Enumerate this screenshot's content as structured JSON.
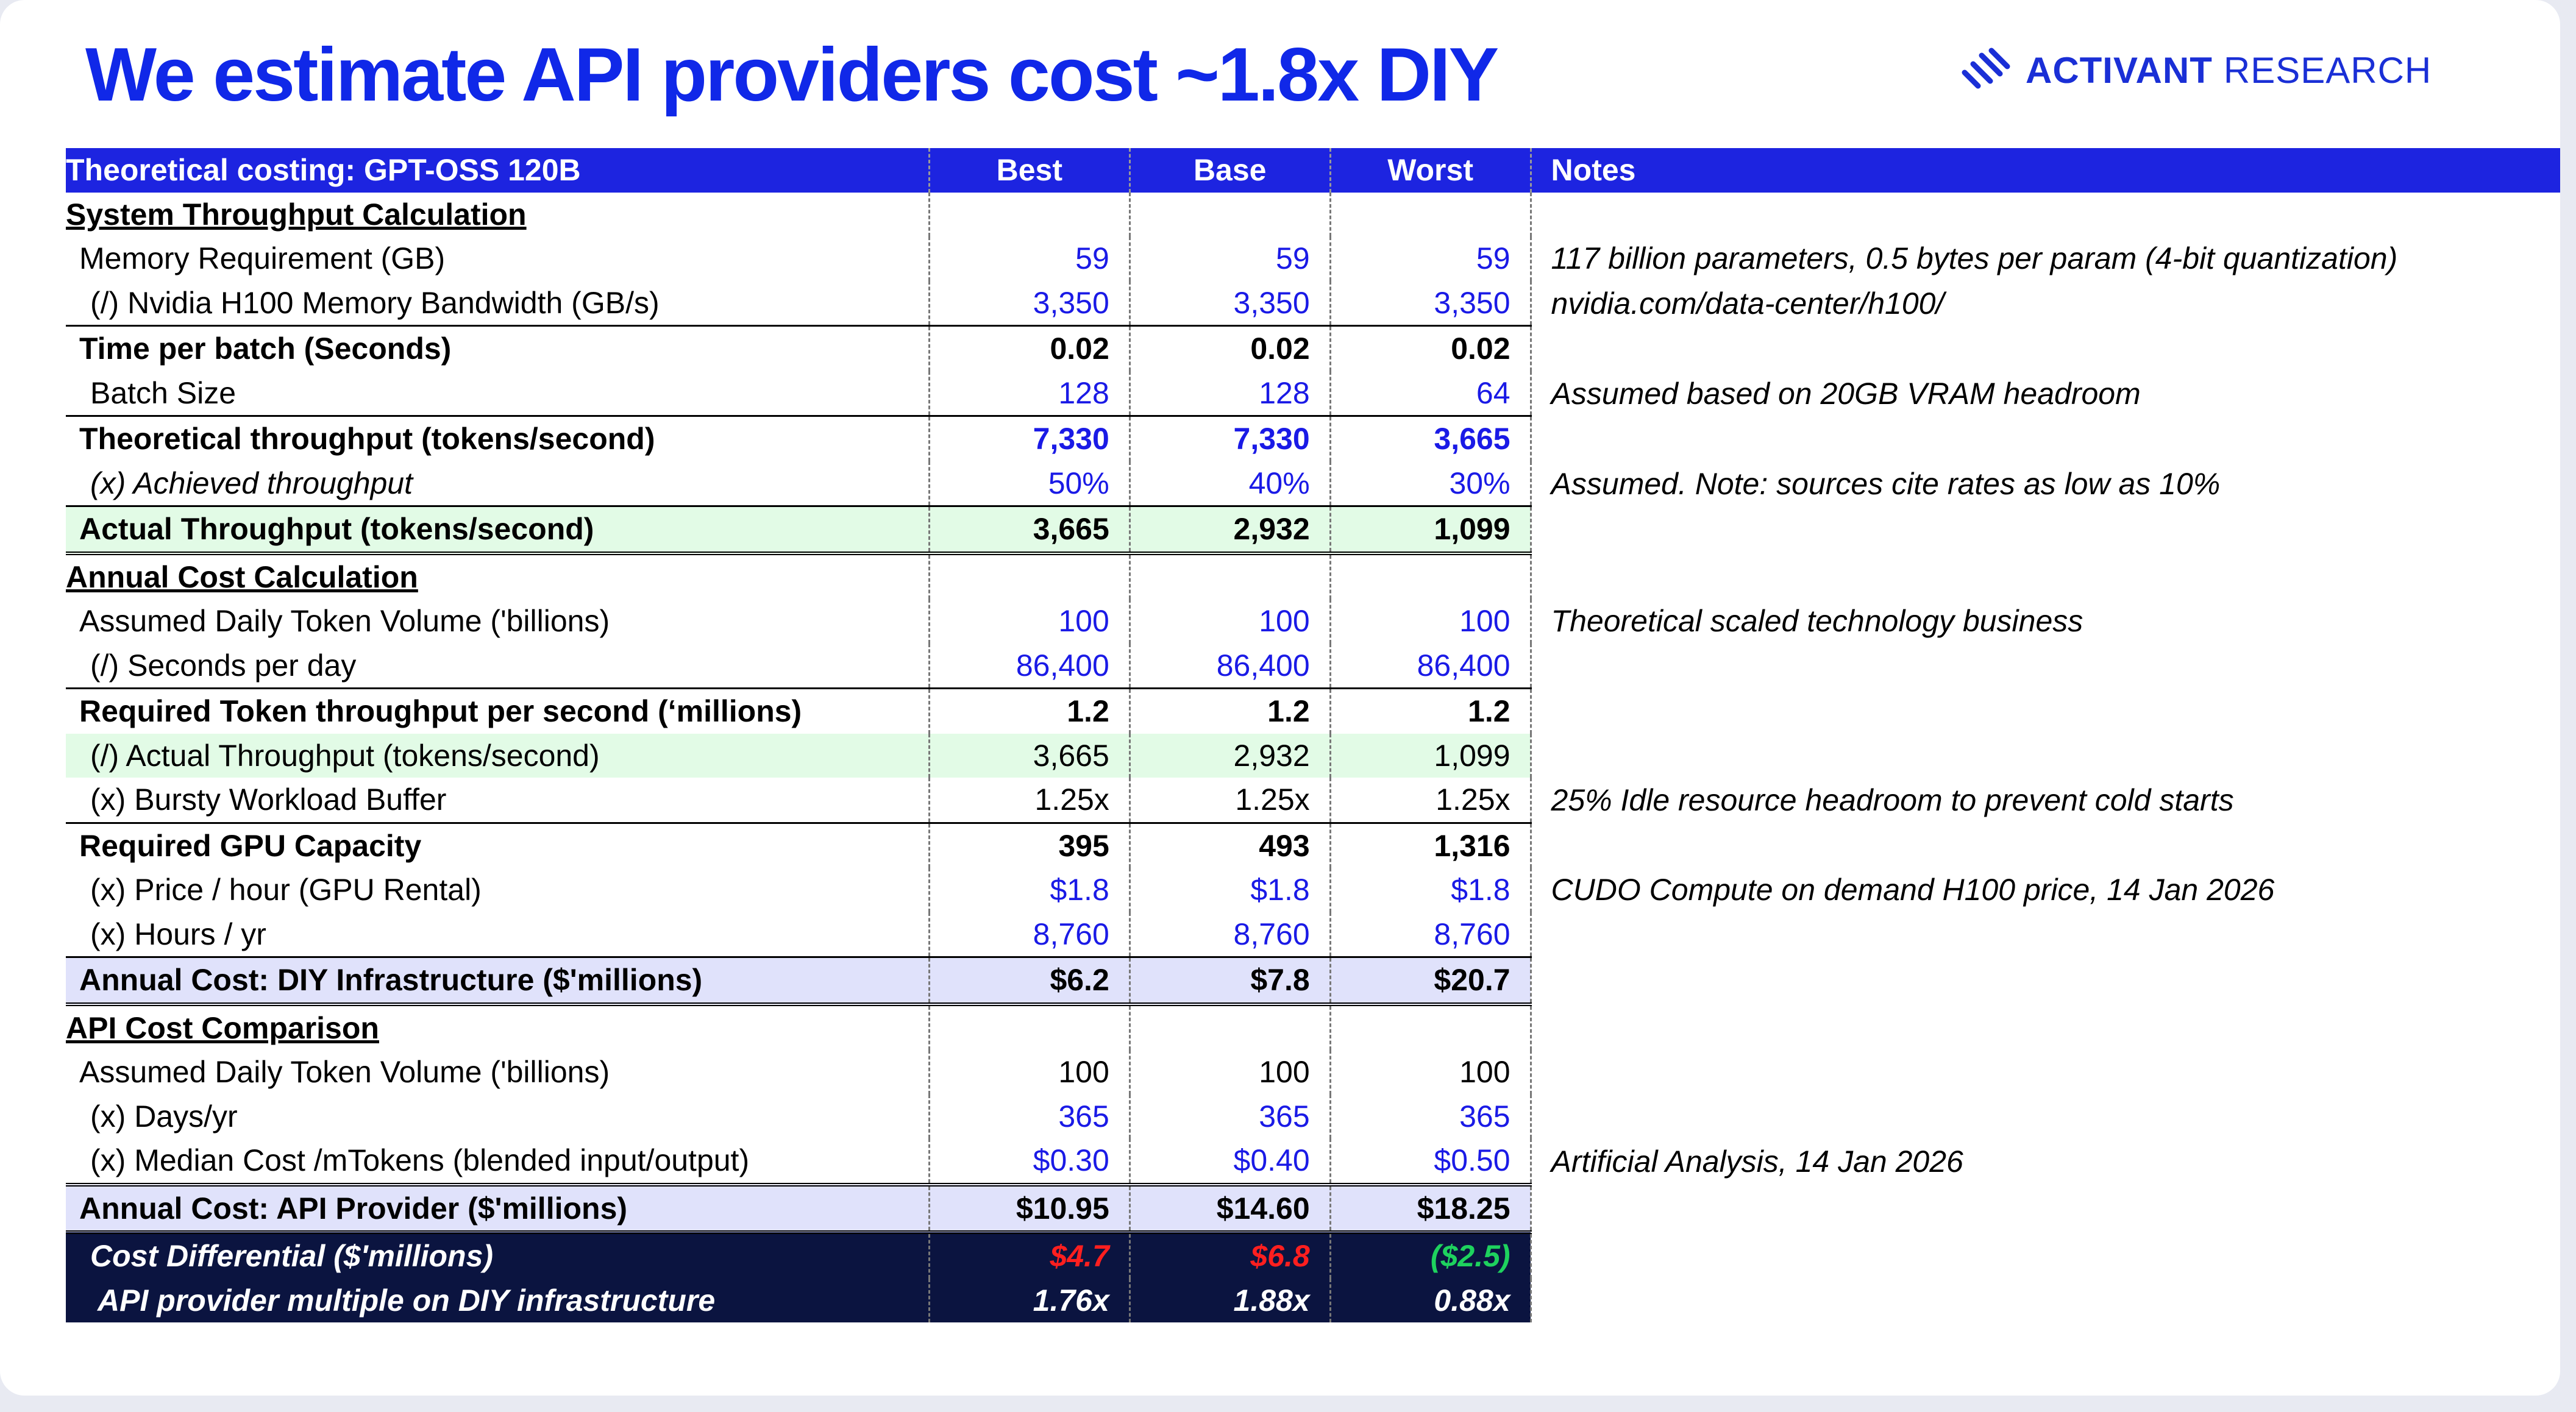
{
  "title": "We estimate API providers cost ~1.8x DIY",
  "logo": {
    "brand_bold": "ACTIVANT",
    "brand_light": "RESEARCH"
  },
  "table": {
    "headers": [
      "Theoretical costing: GPT-OSS 120B",
      "Best",
      "Base",
      "Worst",
      "Notes"
    ],
    "sections": {
      "throughput": "System Throughput Calculation",
      "annual": "Annual Cost Calculation",
      "api": "API Cost Comparison"
    },
    "rows": [
      {
        "label": "Memory Requirement (GB)",
        "best": "59",
        "base": "59",
        "worst": "59",
        "note": "117 billion parameters, 0.5 bytes per param (4-bit quantization)"
      },
      {
        "label": "(/) Nvidia H100 Memory Bandwidth (GB/s)",
        "best": "3,350",
        "base": "3,350",
        "worst": "3,350",
        "note": " nvidia.com/data-center/h100/"
      },
      {
        "label": "Time per batch (Seconds)",
        "best": "0.02",
        "base": "0.02",
        "worst": "0.02",
        "note": ""
      },
      {
        "label": "Batch Size",
        "best": "128",
        "base": "128",
        "worst": "64",
        "note": "Assumed based on 20GB VRAM headroom"
      },
      {
        "label": "Theoretical throughput (tokens/second)",
        "best": "7,330",
        "base": "7,330",
        "worst": "3,665",
        "note": ""
      },
      {
        "label": "(x) Achieved throughput",
        "best": "50%",
        "base": "40%",
        "worst": "30%",
        "note": "Assumed. Note: sources cite rates as low as 10%"
      },
      {
        "label": "Actual Throughput (tokens/second)",
        "best": "3,665",
        "base": "2,932",
        "worst": "1,099",
        "note": ""
      },
      {
        "label": "Assumed Daily Token Volume ('billions)",
        "best": "100",
        "base": "100",
        "worst": "100",
        "note": "Theoretical scaled technology business"
      },
      {
        "label": "(/) Seconds per day",
        "best": "86,400",
        "base": "86,400",
        "worst": "86,400",
        "note": ""
      },
      {
        "label": "Required Token throughput per second (‘millions)",
        "best": "1.2",
        "base": "1.2",
        "worst": "1.2",
        "note": ""
      },
      {
        "label": "(/)  Actual Throughput (tokens/second)",
        "best": "3,665",
        "base": "2,932",
        "worst": "1,099",
        "note": ""
      },
      {
        "label": "(x) Bursty Workload Buffer",
        "best": "1.25x",
        "base": "1.25x",
        "worst": "1.25x",
        "note": "25% Idle resource headroom to prevent cold starts"
      },
      {
        "label": "Required GPU Capacity",
        "best": "395",
        "base": "493",
        "worst": "1,316",
        "note": ""
      },
      {
        "label": "(x) Price / hour (GPU Rental)",
        "best": "$1.8",
        "base": "$1.8",
        "worst": "$1.8",
        "note": "CUDO Compute on demand H100 price, 14 Jan 2026"
      },
      {
        "label": "(x) Hours / yr",
        "best": "8,760",
        "base": "8,760",
        "worst": "8,760",
        "note": ""
      },
      {
        "label": "Annual Cost: DIY Infrastructure ($'millions)",
        "best": "$6.2",
        "base": "$7.8",
        "worst": "$20.7",
        "note": ""
      },
      {
        "label": "Assumed Daily Token Volume ('billions)",
        "best": "100",
        "base": "100",
        "worst": "100",
        "note": ""
      },
      {
        "label": "(x) Days/yr",
        "best": "365",
        "base": "365",
        "worst": "365",
        "note": ""
      },
      {
        "label": "(x) Median Cost /mTokens (blended input/output)",
        "best": "$0.30",
        "base": "$0.40",
        "worst": "$0.50",
        "note": "Artificial Analysis, 14 Jan 2026"
      },
      {
        "label": "Annual Cost: API Provider ($'millions)",
        "best": "$10.95",
        "base": "$14.60",
        "worst": "$18.25",
        "note": ""
      },
      {
        "label": "Cost Differential ($'millions)",
        "best": "$4.7",
        "base": "$6.8",
        "worst": "($2.5)",
        "note": ""
      },
      {
        "label": "API provider multiple on DIY infrastructure",
        "best": "1.76x",
        "base": "1.88x",
        "worst": "0.88x",
        "note": ""
      }
    ]
  },
  "colors": {
    "accent": "#1d24e0",
    "title": "#1028e8",
    "input_blue": "#1a1ae6",
    "highlight_green": "#e2fbe6",
    "highlight_lavender": "#e0e2fb",
    "dark_navy": "#0b1440",
    "negative_red": "#ff1f1f",
    "positive_green": "#1ed25e"
  }
}
